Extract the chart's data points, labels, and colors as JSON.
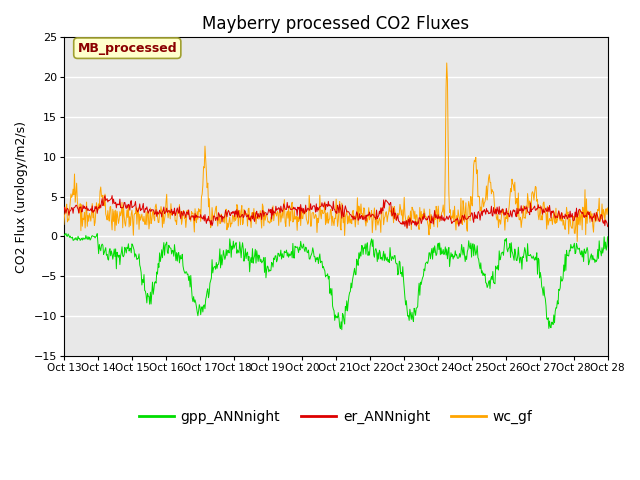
{
  "title": "Mayberry processed CO2 Fluxes",
  "ylabel": "CO2 Flux (urology/m2/s)",
  "ylim": [
    -15,
    25
  ],
  "yticks": [
    -15,
    -10,
    -5,
    0,
    5,
    10,
    15,
    20,
    25
  ],
  "xtick_labels": [
    "Oct 13",
    "Oct 14",
    "Oct 15",
    "Oct 16",
    "Oct 17",
    "Oct 18",
    "Oct 19",
    "Oct 20",
    "Oct 21",
    "Oct 22",
    "Oct 23",
    "Oct 24",
    "Oct 25",
    "Oct 26",
    "Oct 27",
    "Oct 28"
  ],
  "annotation_text": "MB_processed",
  "annotation_color": "#8B0000",
  "annotation_bg": "#ffffcc",
  "annotation_edge": "#a0a030",
  "line_colors": {
    "gpp": "#00dd00",
    "er": "#dd0000",
    "wc": "#ffa500"
  },
  "legend_labels": [
    "gpp_ANNnight",
    "er_ANNnight",
    "wc_gf"
  ],
  "bg_color": "#e8e8e8",
  "title_fontsize": 12,
  "label_fontsize": 9,
  "tick_fontsize": 8,
  "legend_fontsize": 10
}
